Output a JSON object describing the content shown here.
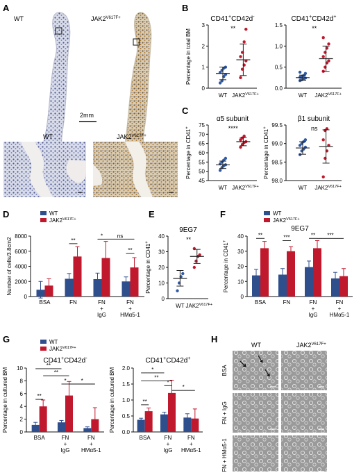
{
  "panels": {
    "A": {
      "letter": "A",
      "wt_label": "WT",
      "jak2_base": "JAK2",
      "jak2_sup": "V617F+",
      "scale_bar": "2mm",
      "zoom_wt_label": "WT",
      "zoom_jak2_base": "JAK2",
      "zoom_jak2_sup": "V617F+"
    },
    "B": {
      "letter": "B"
    },
    "C": {
      "letter": "C"
    },
    "D": {
      "letter": "D"
    },
    "E": {
      "letter": "E"
    },
    "F": {
      "letter": "F"
    },
    "G": {
      "letter": "G"
    },
    "H": {
      "letter": "H",
      "col_wt": "WT",
      "col_jak2_base": "JAK2",
      "col_jak2_sup": "V617F+",
      "rows": [
        "BSA",
        "FN + IgG",
        "FN + HMα5-1"
      ]
    }
  },
  "colors": {
    "wt": "#2f4e8c",
    "jak2": "#c0192d",
    "dot_wt": "#2f5aa8",
    "dot_jak2": "#c0192d"
  },
  "chart_data": [
    {
      "id": "B1",
      "type": "scatter",
      "title_base": "CD41",
      "title_sup1": "+",
      "title_mid": "CD42d",
      "title_sup2": "-",
      "ylabel": "Percentage in total BM",
      "ylim": [
        0,
        3
      ],
      "yticks": [
        "0",
        "1",
        "2",
        "3"
      ],
      "categories": [
        "WT",
        "JAK2V617F+"
      ],
      "sig": "**",
      "series": [
        {
          "points": [
            0.25,
            0.35,
            0.55,
            0.65,
            0.75,
            0.85,
            0.95,
            1.0
          ],
          "mean": 0.7,
          "sd": 0.3
        },
        {
          "points": [
            0.5,
            0.9,
            1.1,
            1.3,
            1.5,
            1.7,
            2.2,
            2.8
          ],
          "mean": 1.35,
          "sd": 0.75
        }
      ]
    },
    {
      "id": "B2",
      "type": "scatter",
      "title_base": "CD41",
      "title_sup1": "+",
      "title_mid": "CD42d",
      "title_sup2": "+",
      "ylabel": "",
      "ylim": [
        0,
        1.5
      ],
      "yticks": [
        "0.0",
        "0.5",
        "1.0",
        "1.5"
      ],
      "categories": [
        "WT",
        "JAK2V617F+"
      ],
      "sig": "**",
      "series": [
        {
          "points": [
            0.18,
            0.2,
            0.22,
            0.24,
            0.26,
            0.28,
            0.3,
            0.35,
            0.38
          ],
          "mean": 0.25,
          "sd": 0.06
        },
        {
          "points": [
            0.4,
            0.5,
            0.6,
            0.65,
            0.75,
            0.85,
            0.95,
            1.05,
            1.2
          ],
          "mean": 0.7,
          "sd": 0.3
        }
      ]
    },
    {
      "id": "C1",
      "type": "scatter",
      "title": "α5 subunit",
      "ylabel_base": "Percentage in CD41",
      "ylabel_sup": "+",
      "ylim": [
        45,
        75
      ],
      "yticks": [
        "45",
        "50",
        "55",
        "60",
        "65",
        "70",
        "75"
      ],
      "categories": [
        "WT",
        "JAK2V617F+"
      ],
      "sig": "****",
      "series": [
        {
          "points": [
            50.5,
            52,
            53,
            53.5,
            54,
            55,
            56,
            57
          ],
          "mean": 53.5,
          "sd": 2
        },
        {
          "points": [
            63,
            64.5,
            65.5,
            66,
            67,
            68,
            69
          ],
          "mean": 66,
          "sd": 2.2
        }
      ]
    },
    {
      "id": "C2",
      "type": "scatter",
      "title": "β1 subunit",
      "ylabel_base": "Percentage in CD41",
      "ylabel_sup": "+",
      "ylim": [
        98,
        99.5
      ],
      "yticks": [
        "98.0",
        "98.5",
        "99.0",
        "99.5"
      ],
      "categories": [
        "WT",
        "JAK2V617F+"
      ],
      "sig": "ns",
      "series": [
        {
          "points": [
            98.7,
            98.8,
            98.85,
            98.9,
            98.95,
            99.0,
            99.05,
            99.1
          ],
          "mean": 98.88,
          "sd": 0.17
        },
        {
          "points": [
            98.1,
            98.6,
            98.8,
            98.95,
            99.1,
            99.35,
            99.4
          ],
          "mean": 98.92,
          "sd": 0.45
        }
      ]
    },
    {
      "id": "D",
      "type": "bar",
      "ylabel": "Number of cells/3.8cm2",
      "ylim": [
        0,
        8000
      ],
      "yticks": [
        "0",
        "2000",
        "4000",
        "6000",
        "8000"
      ],
      "legend": [
        "WT",
        "JAK2V617F+"
      ],
      "categories": [
        "BSA",
        "FN",
        "FN\n+\nIgG",
        "FN\n+\nHMα5-1"
      ],
      "series": [
        {
          "name": "WT",
          "values": [
            900,
            2350,
            2300,
            2000
          ],
          "errors": [
            1100,
            700,
            800,
            600
          ]
        },
        {
          "name": "JAK2V617F+",
          "values": [
            1450,
            5300,
            5100,
            3850
          ],
          "errors": [
            900,
            1300,
            2200,
            1300
          ]
        }
      ],
      "sigs": [
        {
          "from": [
            1,
            0
          ],
          "to": [
            1,
            1
          ],
          "label": "**",
          "y": 7000
        },
        {
          "from": [
            2,
            0
          ],
          "to": [
            2,
            1
          ],
          "label": "*",
          "y": 7600
        },
        {
          "from": [
            2,
            1
          ],
          "to": [
            3,
            1
          ],
          "label": "ns",
          "y": 7600
        },
        {
          "from": [
            3,
            0
          ],
          "to": [
            3,
            1
          ],
          "label": "**",
          "y": 5700
        }
      ]
    },
    {
      "id": "E",
      "type": "scatter",
      "title": "9EG7",
      "ylabel_base": "Percentage in CD41",
      "ylabel_sup": "+",
      "ylim": [
        0,
        40
      ],
      "yticks": [
        "0",
        "10",
        "20",
        "30",
        "40"
      ],
      "categories": [
        "WT",
        "JAK2V617F+"
      ],
      "sig": "**",
      "series": [
        {
          "points": [
            5,
            10,
            14,
            16
          ],
          "mean": 13,
          "sd": 5
        },
        {
          "points": [
            20,
            24,
            27,
            28,
            32
          ],
          "mean": 27,
          "sd": 4.5
        }
      ]
    },
    {
      "id": "F",
      "type": "bar",
      "title": "9EG7",
      "ylabel_base": "Percentage in CD41",
      "ylabel_sup": "+",
      "ylim": [
        0,
        40
      ],
      "yticks": [
        "0",
        "10",
        "20",
        "30",
        "40"
      ],
      "legend": [
        "WT",
        "JAK2V617F+"
      ],
      "categories": [
        "BSA",
        "FN",
        "FN\n+\nIgG",
        "FN\n+\nHMα5-1"
      ],
      "series": [
        {
          "name": "WT",
          "values": [
            14,
            14.5,
            19.5,
            12
          ],
          "errors": [
            4,
            4,
            4,
            4
          ]
        },
        {
          "name": "JAK2V617F+",
          "values": [
            32,
            30,
            32,
            13.5
          ],
          "errors": [
            4.5,
            3,
            5,
            5
          ]
        }
      ],
      "sigs": [
        {
          "from": [
            0,
            0
          ],
          "to": [
            0,
            1
          ],
          "label": "**",
          "y": 38.5
        },
        {
          "from": [
            1,
            0
          ],
          "to": [
            1,
            1
          ],
          "label": "***",
          "y": 37
        },
        {
          "from": [
            2,
            0
          ],
          "to": [
            2,
            1
          ],
          "label": "**",
          "y": 38.5
        },
        {
          "from": [
            2,
            1
          ],
          "to": [
            3,
            1
          ],
          "label": "***",
          "y": 38.5
        }
      ]
    },
    {
      "id": "G1",
      "type": "bar",
      "title_base": "CD41",
      "title_sup1": "+",
      "title_mid": "CD42d",
      "title_sup2": "-",
      "ylabel": "Percentage in cultured BM",
      "ylim": [
        0,
        10
      ],
      "yticks": [
        "0",
        "2",
        "4",
        "6",
        "8",
        "10"
      ],
      "legend": [
        "WT",
        "JAK2V617F+"
      ],
      "categories": [
        "BSA",
        "FN\n+\nIgG",
        "FN\n+\nHMα5-1"
      ],
      "series": [
        {
          "name": "WT",
          "values": [
            1.1,
            1.5,
            0.6
          ],
          "errors": [
            0.4,
            0.3,
            0.2
          ]
        },
        {
          "name": "JAK2V617F+",
          "values": [
            4.0,
            5.7,
            2.0
          ],
          "errors": [
            1.0,
            2.2,
            1.8
          ]
        }
      ],
      "sigs": [
        {
          "from": [
            0,
            0
          ],
          "to": [
            0,
            1
          ],
          "label": "**",
          "y": 5.1
        },
        {
          "from": [
            1,
            0
          ],
          "to": [
            1,
            1
          ],
          "label": "*",
          "y": 7.5
        },
        {
          "from": [
            1,
            1
          ],
          "to": [
            2,
            1
          ],
          "label": "*",
          "y": 7.5
        },
        {
          "from": [
            0,
            1
          ],
          "to": [
            1,
            1
          ],
          "label": "**",
          "y": 8.8
        },
        {
          "from": [
            0,
            0
          ],
          "to": [
            1,
            0
          ],
          "label": "**",
          "y": 9.9
        }
      ]
    },
    {
      "id": "G2",
      "type": "bar",
      "title_base": "CD41",
      "title_sup1": "+",
      "title_mid": "CD42d",
      "title_sup2": "+",
      "ylabel": "Percentage in cultured BM",
      "ylim": [
        0,
        2
      ],
      "yticks": [
        "0.0",
        "0.5",
        "1.0",
        "1.5",
        "2.0"
      ],
      "legend": [
        "WT",
        "JAK2V617F+"
      ],
      "categories": [
        "BSA",
        "FN\n+\nIgG",
        "FN\n+\nHMα5-1"
      ],
      "series": [
        {
          "name": "WT",
          "values": [
            0.38,
            0.55,
            0.45
          ],
          "errors": [
            0.05,
            0.07,
            0.12
          ]
        },
        {
          "name": "JAK2V617F+",
          "values": [
            0.65,
            1.22,
            0.42
          ],
          "errors": [
            0.1,
            0.4,
            0.3
          ]
        }
      ],
      "sigs": [
        {
          "from": [
            0,
            0
          ],
          "to": [
            0,
            1
          ],
          "label": "**",
          "y": 0.85
        },
        {
          "from": [
            1,
            0
          ],
          "to": [
            1,
            1
          ],
          "label": "*",
          "y": 1.45
        },
        {
          "from": [
            1,
            1
          ],
          "to": [
            2,
            1
          ],
          "label": "*",
          "y": 1.3
        },
        {
          "from": [
            0,
            0
          ],
          "to": [
            1,
            1
          ],
          "label": "**",
          "y": 1.6
        },
        {
          "from": [
            0,
            0
          ],
          "to": [
            1,
            0
          ],
          "label": "*",
          "y": 1.85
        }
      ]
    }
  ]
}
